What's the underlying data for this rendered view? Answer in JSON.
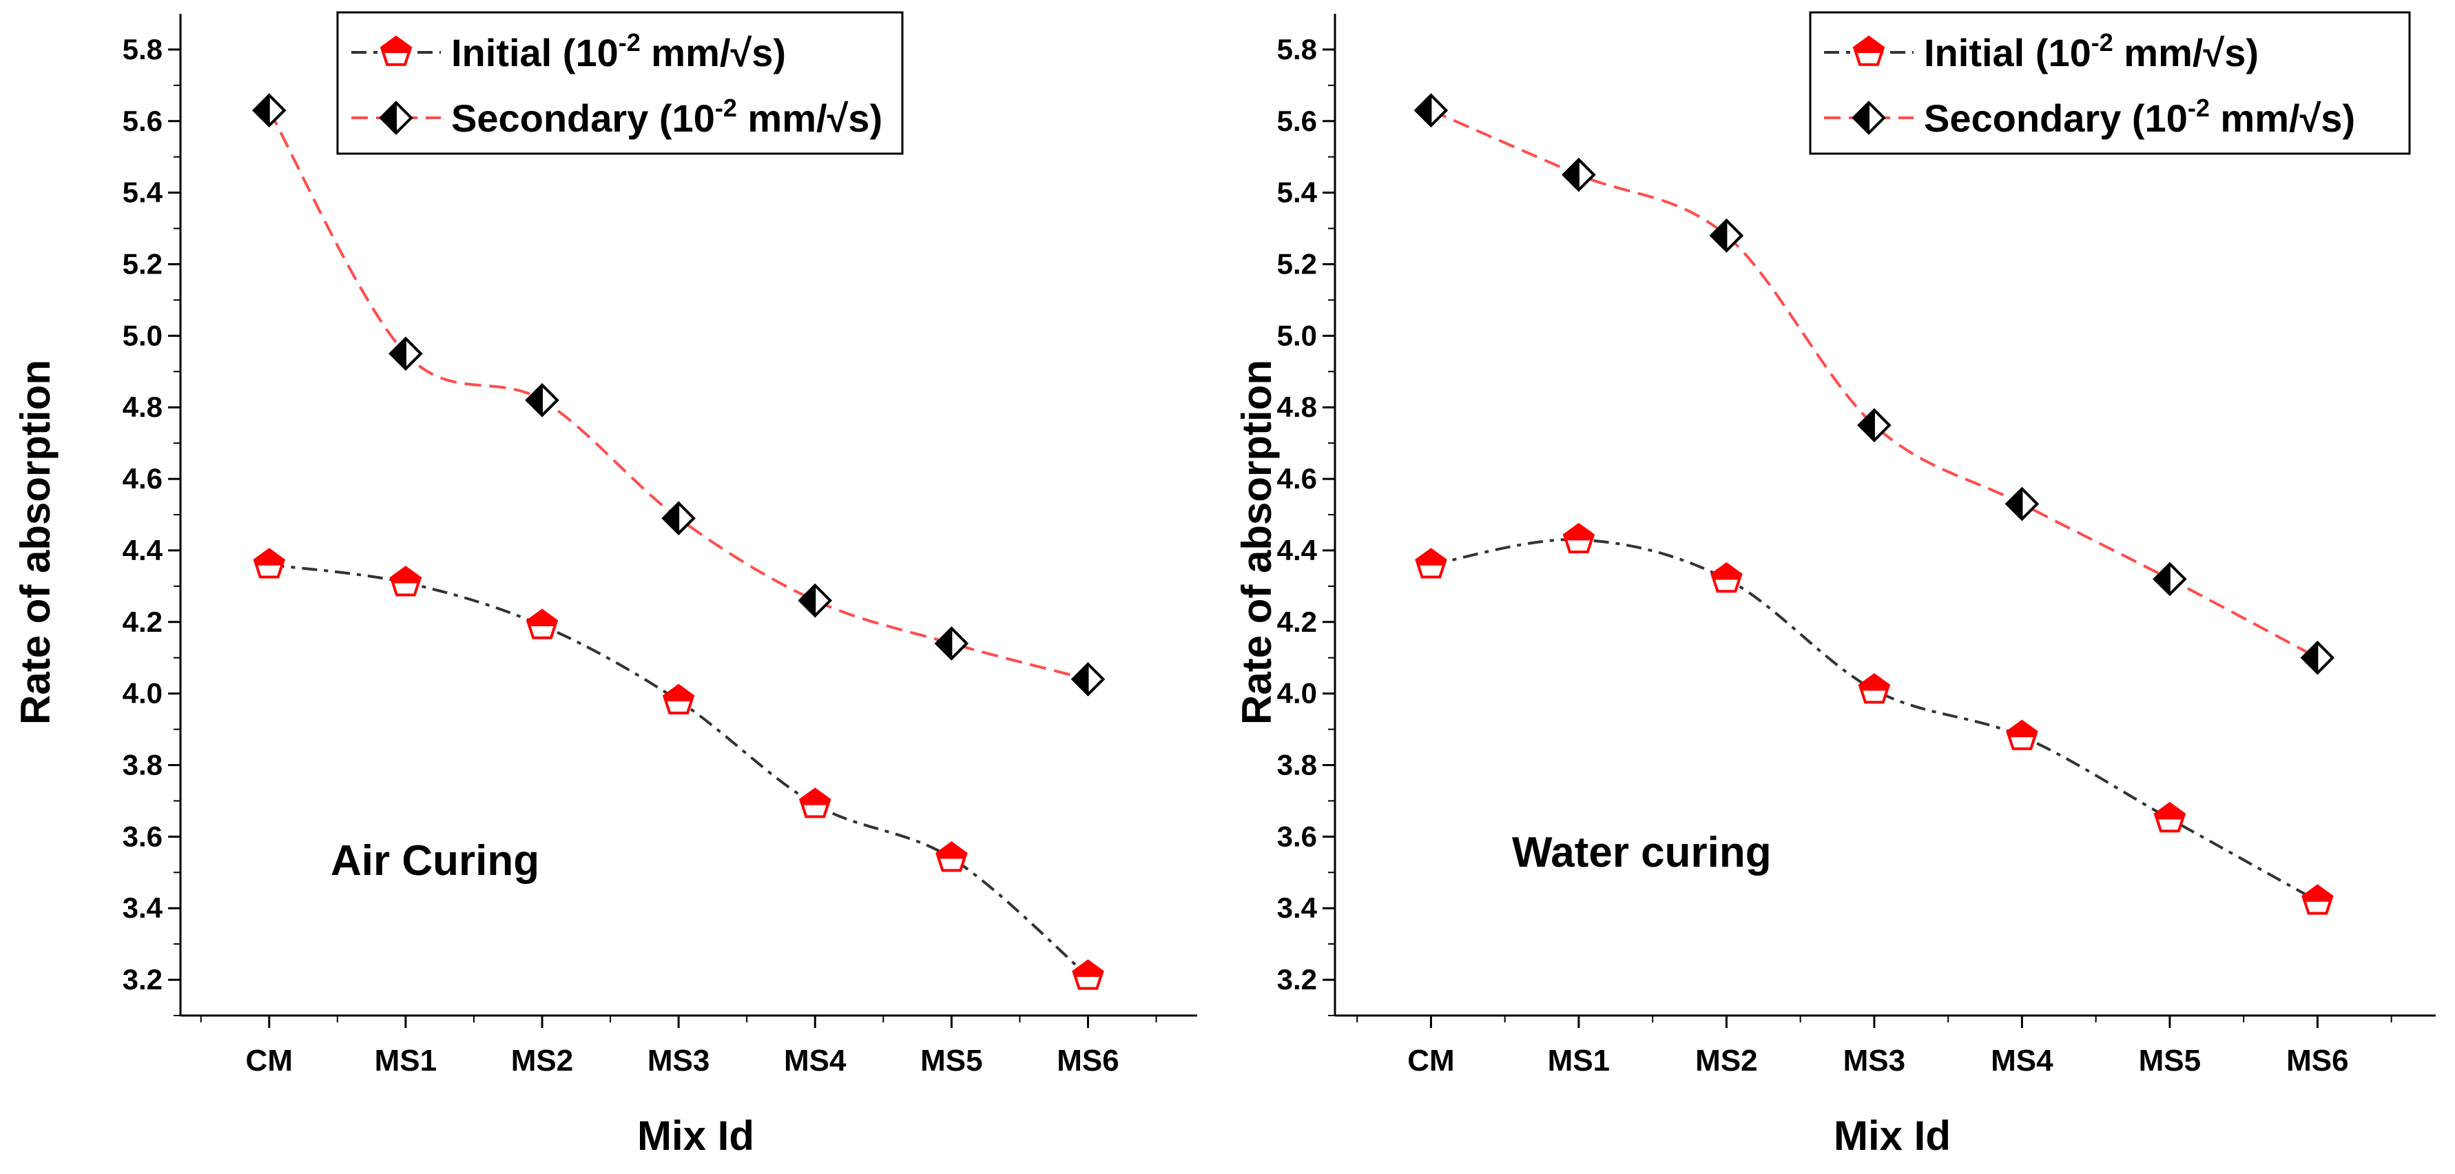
{
  "colors": {
    "initial_line": "#333333",
    "secondary_line": "#ff4d4d",
    "initial_marker": "#ff0000",
    "secondary_marker": "#000000"
  },
  "chart_data": [
    {
      "type": "line",
      "title": "",
      "annotation": "Air Curing",
      "xlabel": "Mix Id",
      "ylabel": "Rate of absorption",
      "ylim": [
        3.1,
        5.9
      ],
      "yticks": [
        "3.2",
        "3.4",
        "3.6",
        "3.8",
        "4.0",
        "4.2",
        "4.4",
        "4.6",
        "4.8",
        "5.0",
        "5.2",
        "5.4",
        "5.6",
        "5.8"
      ],
      "categories": [
        "CM",
        "MS1",
        "MS2",
        "MS3",
        "MS4",
        "MS5",
        "MS6"
      ],
      "legend_position": "top-center",
      "series": [
        {
          "name": "Initial",
          "legend_label": "Initial (10",
          "legend_exp": "-2",
          "legend_unit": " mm/√s)",
          "values": [
            4.36,
            4.31,
            4.19,
            3.98,
            3.69,
            3.54,
            3.21
          ]
        },
        {
          "name": "Secondary",
          "legend_label": "Secondary (10",
          "legend_exp": "-2",
          "legend_unit": " mm/√s)",
          "values": [
            5.63,
            4.95,
            4.82,
            4.49,
            4.26,
            4.14,
            4.04
          ]
        }
      ]
    },
    {
      "type": "line",
      "title": "",
      "annotation": "Water curing",
      "xlabel": "Mix Id",
      "ylabel": "Rate of absorption",
      "ylim": [
        3.1,
        5.9
      ],
      "yticks": [
        "3.2",
        "3.4",
        "3.6",
        "3.8",
        "4.0",
        "4.2",
        "4.4",
        "4.6",
        "4.8",
        "5.0",
        "5.2",
        "5.4",
        "5.6",
        "5.8"
      ],
      "categories": [
        "CM",
        "MS1",
        "MS2",
        "MS3",
        "MS4",
        "MS5",
        "MS6"
      ],
      "legend_position": "top-center",
      "series": [
        {
          "name": "Initial",
          "legend_label": "Initial (10",
          "legend_exp": "-2",
          "legend_unit": " mm/√s)",
          "values": [
            4.36,
            4.43,
            4.32,
            4.01,
            3.88,
            3.65,
            3.42
          ]
        },
        {
          "name": "Secondary",
          "legend_label": "Secondary (10",
          "legend_exp": "-2",
          "legend_unit": " mm/√s)",
          "values": [
            5.63,
            5.45,
            5.28,
            4.75,
            4.53,
            4.32,
            4.1
          ]
        }
      ]
    }
  ]
}
